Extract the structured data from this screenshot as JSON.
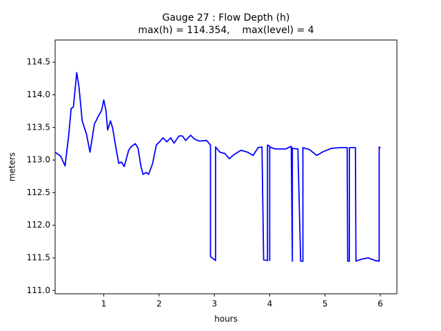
{
  "chart_data": {
    "type": "line",
    "title": "Gauge 27 : Flow Depth (h)",
    "subtitle": "max(h) = 114.354,    max(level) = 4",
    "x_label": "hours",
    "y_label": "meters",
    "xlim": [
      0.12,
      6.3
    ],
    "ylim": [
      110.95,
      114.84
    ],
    "xticks": [
      1,
      2,
      3,
      4,
      5,
      6
    ],
    "yticks": [
      {
        "value": 111.0,
        "label": "111.0"
      },
      111.5,
      {
        "value": 112.0,
        "label": "112.0"
      },
      112.5,
      {
        "value": 113.0,
        "label": "113.0"
      },
      113.5,
      {
        "value": 114.0,
        "label": "114.0"
      },
      114.5
    ],
    "grid": false,
    "series": [
      {
        "name": "h",
        "color": "#0000ff",
        "x": [
          0.12,
          0.22,
          0.3,
          0.36,
          0.41,
          0.45,
          0.51,
          0.55,
          0.61,
          0.69,
          0.75,
          0.83,
          0.9,
          0.96,
          1.0,
          1.04,
          1.07,
          1.12,
          1.16,
          1.21,
          1.27,
          1.32,
          1.37,
          1.45,
          1.5,
          1.57,
          1.62,
          1.67,
          1.71,
          1.77,
          1.81,
          1.88,
          1.95,
          2.01,
          2.07,
          2.14,
          2.21,
          2.27,
          2.36,
          2.42,
          2.48,
          2.57,
          2.64,
          2.73,
          2.86,
          2.93,
          2.93,
          3.02,
          3.02,
          3.1,
          3.19,
          3.27,
          3.35,
          3.48,
          3.6,
          3.7,
          3.79,
          3.86,
          3.89,
          3.96,
          3.96,
          4.0,
          4.0,
          4.0,
          4.1,
          4.29,
          4.39,
          4.41,
          4.41,
          4.51,
          4.56,
          4.6,
          4.6,
          4.72,
          4.85,
          4.97,
          5.12,
          5.28,
          5.4,
          5.41,
          5.44,
          5.44,
          5.55,
          5.56,
          5.66,
          5.78,
          5.91,
          5.98,
          5.98,
          6.0
        ],
        "values": [
          113.12,
          113.06,
          112.91,
          113.34,
          113.79,
          113.81,
          114.34,
          114.13,
          113.6,
          113.39,
          113.12,
          113.55,
          113.67,
          113.76,
          113.92,
          113.76,
          113.46,
          113.6,
          113.49,
          113.23,
          112.95,
          112.97,
          112.9,
          113.15,
          113.21,
          113.25,
          113.18,
          112.91,
          112.78,
          112.81,
          112.78,
          112.94,
          113.23,
          113.28,
          113.34,
          113.28,
          113.34,
          113.26,
          113.37,
          113.37,
          113.3,
          113.38,
          113.32,
          113.29,
          113.3,
          113.23,
          111.52,
          111.46,
          113.2,
          113.12,
          113.1,
          113.02,
          113.08,
          113.15,
          113.12,
          113.07,
          113.19,
          113.2,
          111.47,
          111.46,
          113.23,
          113.21,
          111.46,
          113.2,
          113.17,
          113.17,
          113.21,
          111.45,
          113.18,
          113.17,
          111.45,
          111.45,
          113.19,
          113.16,
          113.07,
          113.13,
          113.18,
          113.19,
          113.19,
          111.45,
          111.45,
          113.19,
          113.19,
          111.45,
          111.48,
          111.5,
          111.46,
          111.45,
          113.2,
          113.18
        ]
      }
    ]
  }
}
